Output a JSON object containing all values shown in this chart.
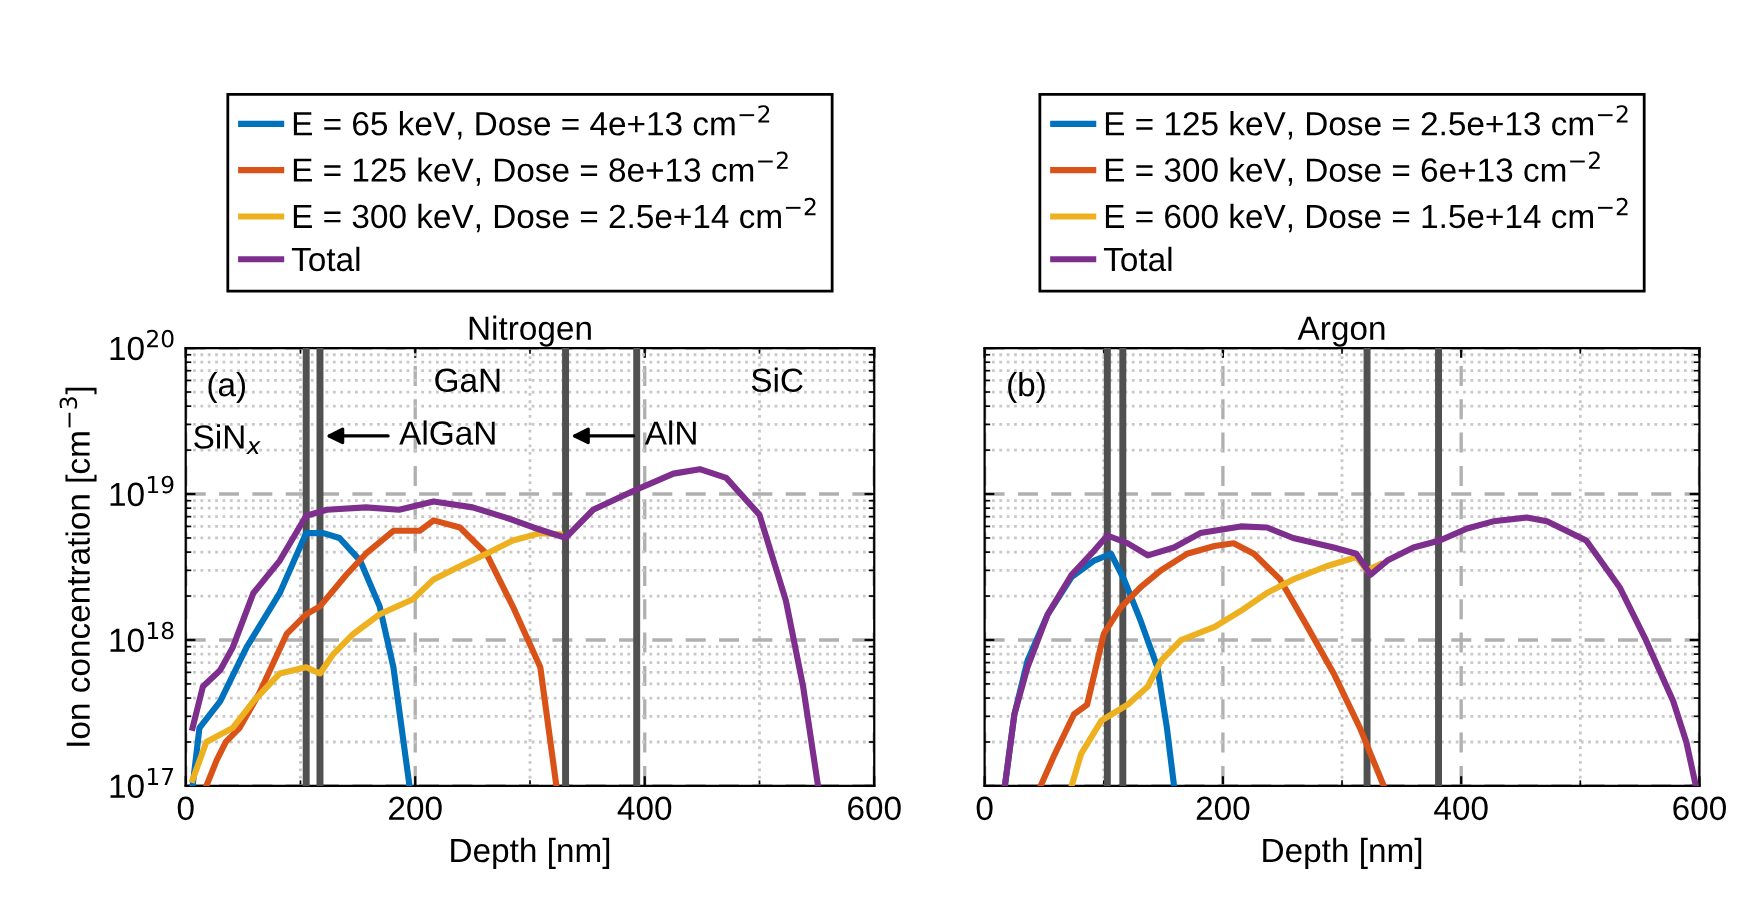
{
  "chart_data": [
    {
      "type": "line",
      "title": "Nitrogen",
      "xlabel": "Depth [nm]",
      "ylabel": "Ion concentration [cm$^{−3}$]",
      "log": "y",
      "xlim": [
        0,
        600
      ],
      "xticks": [
        0,
        200,
        400,
        600
      ],
      "ylim": [
        1e+17,
        1e+20
      ],
      "yticks": [
        {
          "value": 1e+17,
          "label": "10$^{17}$"
        },
        {
          "value": 1e+18,
          "label": "10$^{18}$"
        },
        {
          "value": 1e+19,
          "label": "10$^{19}$"
        },
        {
          "value": 1e+20,
          "label": "10$^{20}$"
        }
      ],
      "grid": true,
      "legend": "top",
      "line_style": "solid",
      "marker": "none",
      "series": [
        {
          "name": "E = 65 keV, Dose = 4e+13 cm$^{−2}$",
          "color": "#0072bd",
          "x": [
            6,
            12,
            30,
            53,
            82,
            105,
            120,
            134,
            152,
            169,
            181,
            195
          ],
          "values": [
            1e+17,
            2.5e+17,
            3.8e+17,
            8.9e+17,
            2.1e+18,
            5.4e+18,
            5.4e+18,
            5e+18,
            3.5e+18,
            1.7e+18,
            6.5e+17,
            1e+17
          ]
        },
        {
          "name": "E = 125 keV, Dose = 8e+13 cm$^{−2}$",
          "color": "#d95319",
          "x": [
            18,
            27,
            35,
            47,
            64,
            88,
            105,
            117,
            140,
            157,
            181,
            204,
            216,
            239,
            262,
            285,
            309,
            323
          ],
          "values": [
            1e+17,
            1.5e+17,
            2e+17,
            2.5e+17,
            4.3e+17,
            1.1e+18,
            1.5e+18,
            1.7e+18,
            2.8e+18,
            3.9e+18,
            5.6e+18,
            5.6e+18,
            6.6e+18,
            5.9e+18,
            3.9e+18,
            1.7e+18,
            6.5e+17,
            1e+17
          ]
        },
        {
          "name": "E = 300 keV, Dose = 2.5e+14 cm$^{−2}$",
          "color": "#edb120",
          "x": [
            6,
            18,
            41,
            59,
            82,
            105,
            117,
            128,
            146,
            169,
            198,
            216,
            239,
            262,
            285,
            309,
            326
          ],
          "values": [
            1.1e+17,
            2e+17,
            2.5e+17,
            3.8e+17,
            5.9e+17,
            6.5e+17,
            5.9e+17,
            7.9e+17,
            1.1e+18,
            1.5e+18,
            1.9e+18,
            2.6e+18,
            3.2e+18,
            3.9e+18,
            4.8e+18,
            5.4e+18,
            5.3e+18
          ]
        },
        {
          "name": "Total",
          "color": "#7e2f8e",
          "x": [
            6,
            15,
            30,
            41,
            59,
            82,
            105,
            123,
            157,
            186,
            216,
            250,
            279,
            303,
            331,
            355,
            390,
            425,
            448,
            471,
            500,
            523,
            538,
            551
          ],
          "values": [
            2.5e+17,
            4.8e+17,
            6.2e+17,
            8.9e+17,
            2.1e+18,
            3.5e+18,
            7.1e+18,
            7.8e+18,
            8.1e+18,
            7.8e+18,
            8.9e+18,
            8.1e+18,
            6.9e+18,
            5.9e+18,
            5e+18,
            7.8e+18,
            1.05e+19,
            1.38e+19,
            1.48e+19,
            1.29e+19,
            7.2e+18,
            1.86e+18,
            4.8e+17,
            1e+17
          ]
        }
      ],
      "ref_lines": [
        {
          "axis": "x",
          "value": 105,
          "color": "#505050"
        },
        {
          "axis": "x",
          "value": 117,
          "label": "AlGaN",
          "color": "#505050"
        },
        {
          "axis": "x",
          "value": 331,
          "label": "AlN",
          "color": "#505050"
        },
        {
          "axis": "x",
          "value": 393,
          "color": "#505050"
        }
      ],
      "annotations": [
        "(a)",
        "SiN$_{x}$",
        "GaN",
        "SiC"
      ]
    },
    {
      "type": "line",
      "title": "Argon",
      "xlabel": "Depth [nm]",
      "log": "y",
      "xlim": [
        0,
        600
      ],
      "xticks": [
        0,
        200,
        400,
        600
      ],
      "ylim": [
        1e+17,
        1e+20
      ],
      "yticks": [
        {
          "value": 1e+17,
          "label": null
        },
        {
          "value": 1e+18,
          "label": null
        },
        {
          "value": 1e+19,
          "label": null
        },
        {
          "value": 1e+20,
          "label": null
        }
      ],
      "tick_labels": "x",
      "grid": true,
      "legend": "top",
      "line_style": "solid",
      "marker": "none",
      "series": [
        {
          "name": "E = 125 keV, Dose = 2.5e+13 cm$^{−2}$",
          "color": "#0072bd",
          "x": [
            17,
            25,
            36,
            53,
            73,
            92,
            106,
            117,
            131,
            145,
            153,
            159
          ],
          "values": [
            1e+17,
            3.1e+17,
            7.2e+17,
            1.5e+18,
            2.7e+18,
            3.5e+18,
            3.9e+18,
            2.6e+18,
            1.35e+18,
            6.5e+17,
            2.5e+17,
            1e+17
          ]
        },
        {
          "name": "E = 300 keV, Dose = 6e+13 cm$^{−2}$",
          "color": "#d95319",
          "x": [
            47,
            59,
            75,
            86,
            100,
            114,
            131,
            148,
            170,
            193,
            209,
            226,
            248,
            271,
            293,
            315,
            335
          ],
          "values": [
            1e+17,
            1.66e+17,
            3.1e+17,
            3.6e+17,
            1.1e+18,
            1.66e+18,
            2.3e+18,
            3e+18,
            3.9e+18,
            4.4e+18,
            4.6e+18,
            3.9e+18,
            2.6e+18,
            1.23e+18,
            5.9e+17,
            2.5e+17,
            1e+17
          ]
        },
        {
          "name": "E = 600 keV, Dose = 1.5e+14 cm$^{−2}$",
          "color": "#edb120",
          "x": [
            73,
            81,
            98,
            120,
            137,
            148,
            165,
            193,
            215,
            237,
            259,
            287,
            312,
            321,
            332
          ],
          "values": [
            1e+17,
            1.66e+17,
            2.8e+17,
            3.6e+17,
            4.8e+17,
            7.2e+17,
            1e+18,
            1.23e+18,
            1.58e+18,
            2.1e+18,
            2.6e+18,
            3.2e+18,
            3.7e+18,
            3e+18,
            3.3e+18
          ]
        },
        {
          "name": "Total",
          "color": "#7e2f8e",
          "x": [
            17,
            25,
            36,
            53,
            73,
            92,
            103,
            120,
            137,
            159,
            181,
            215,
            237,
            259,
            293,
            312,
            324,
            338,
            360,
            382,
            405,
            427,
            455,
            472,
            505,
            533,
            555,
            578,
            589,
            597
          ],
          "values": [
            1e+17,
            3.1e+17,
            6.5e+17,
            1.5e+18,
            2.8e+18,
            4.1e+18,
            5.2e+18,
            4.6e+18,
            3.8e+18,
            4.3e+18,
            5.4e+18,
            6e+18,
            5.9e+18,
            5e+18,
            4.3e+18,
            3.9e+18,
            2.8e+18,
            3.5e+18,
            4.3e+18,
            4.8e+18,
            5.8e+18,
            6.5e+18,
            6.9e+18,
            6.5e+18,
            4.8e+18,
            2.3e+18,
            1e+18,
            3.8e+17,
            2e+17,
            1e+17
          ]
        }
      ],
      "ref_lines": [
        {
          "axis": "x",
          "value": 103,
          "color": "#505050"
        },
        {
          "axis": "x",
          "value": 116,
          "color": "#505050"
        },
        {
          "axis": "x",
          "value": 321,
          "color": "#505050"
        },
        {
          "axis": "x",
          "value": 381,
          "color": "#505050"
        }
      ],
      "annotations": [
        "(b)"
      ]
    }
  ]
}
